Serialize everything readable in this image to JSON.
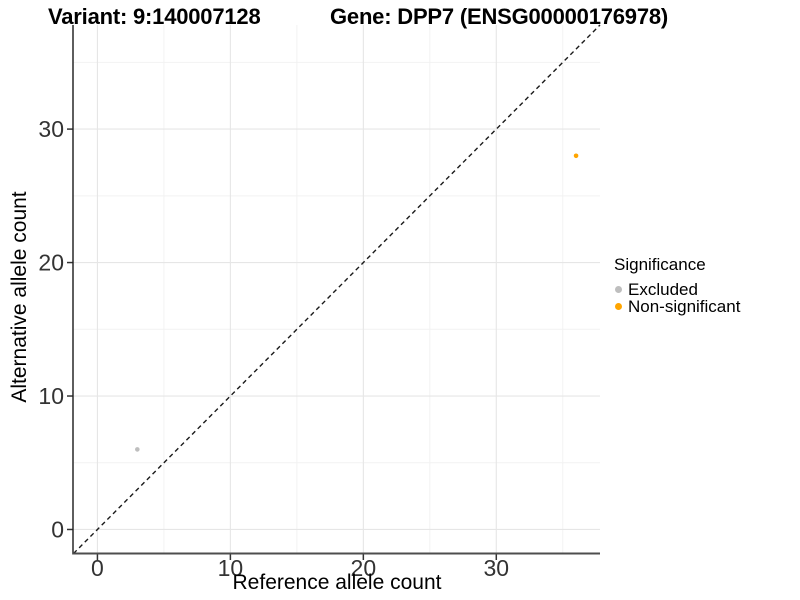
{
  "chart_data": {
    "type": "scatter",
    "title_left": "Variant: 9:140007128",
    "title_right": "Gene: DPP7 (ENSG00000176978)",
    "xlabel": "Reference allele count",
    "ylabel": "Alternative allele count",
    "xlim": [
      -1.8,
      37.8
    ],
    "ylim": [
      -1.8,
      37.8
    ],
    "xticks": [
      0,
      10,
      20,
      30
    ],
    "yticks": [
      0,
      10,
      20,
      30
    ],
    "xminor": [
      5,
      15,
      25,
      35
    ],
    "yminor": [
      5,
      15,
      25,
      35
    ],
    "grid": "major+minor",
    "identity_line": {
      "equation": "y = x",
      "style": "dashed",
      "color": "#1a1a1a"
    },
    "series": [
      {
        "name": "Excluded",
        "color": "#BEBEBE",
        "points": [
          {
            "x": 3,
            "y": 6
          }
        ]
      },
      {
        "name": "Non-significant",
        "color": "#FFA500",
        "points": [
          {
            "x": 36,
            "y": 28
          }
        ]
      }
    ],
    "legend": {
      "title": "Significance",
      "position": "right",
      "items": [
        {
          "label": "Excluded",
          "color": "#BEBEBE"
        },
        {
          "label": "Non-significant",
          "color": "#FFA500"
        }
      ]
    },
    "style": {
      "grid_major_color": "#e6e6e6",
      "grid_minor_color": "#f2f2f2",
      "x_axis_line_color": "#4d4d4d",
      "y_axis_line_color": "#1a1a1a",
      "tick_mark_color": "#333333",
      "tick_label_color": "#333333"
    }
  }
}
